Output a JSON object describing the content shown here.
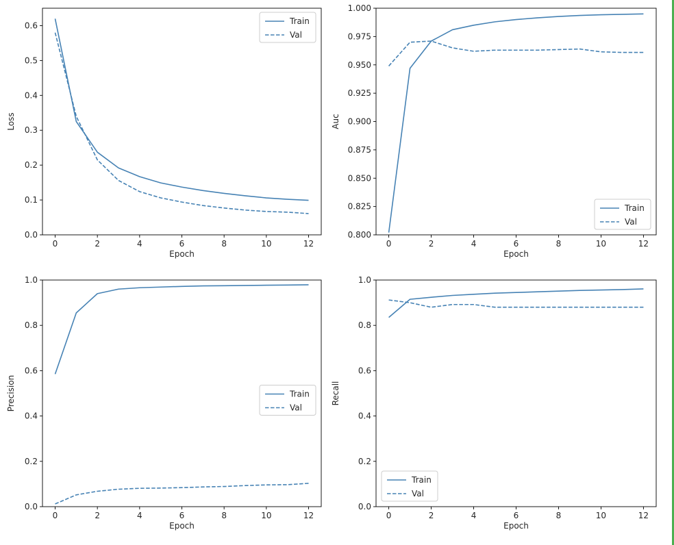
{
  "figure": {
    "colors": {
      "line": "#4682b4",
      "axis": "#000000",
      "text": "#262626",
      "legend_edge": "#cccccc"
    }
  },
  "chart_data": [
    {
      "type": "line",
      "id": "loss",
      "title": "",
      "xlabel": "Epoch",
      "ylabel": "Loss",
      "xlim": [
        -0.6,
        12.6
      ],
      "ylim": [
        0,
        0.65
      ],
      "xticks": [
        0,
        2,
        4,
        6,
        8,
        10,
        12
      ],
      "xtick_labels": [
        "0",
        "2",
        "4",
        "6",
        "8",
        "10",
        "12"
      ],
      "yticks": [
        0,
        0.1,
        0.2,
        0.3,
        0.4,
        0.5,
        0.6
      ],
      "ytick_labels": [
        "0.0",
        "0.1",
        "0.2",
        "0.3",
        "0.4",
        "0.5",
        "0.6"
      ],
      "legend": {
        "placement": "upper right",
        "entries": [
          "Train",
          "Val"
        ]
      },
      "x": [
        0,
        1,
        2,
        3,
        4,
        5,
        6,
        7,
        8,
        9,
        10,
        11,
        12
      ],
      "series": [
        {
          "name": "Train",
          "style": "solid",
          "values": [
            0.62,
            0.325,
            0.237,
            0.192,
            0.167,
            0.149,
            0.137,
            0.127,
            0.119,
            0.112,
            0.106,
            0.102,
            0.099
          ]
        },
        {
          "name": "Val",
          "style": "dashed",
          "values": [
            0.58,
            0.34,
            0.215,
            0.156,
            0.124,
            0.106,
            0.094,
            0.084,
            0.077,
            0.071,
            0.067,
            0.065,
            0.061
          ]
        }
      ]
    },
    {
      "type": "line",
      "id": "auc",
      "title": "",
      "xlabel": "Epoch",
      "ylabel": "Auc",
      "xlim": [
        -0.6,
        12.6
      ],
      "ylim": [
        0.8,
        1.0
      ],
      "xticks": [
        0,
        2,
        4,
        6,
        8,
        10,
        12
      ],
      "xtick_labels": [
        "0",
        "2",
        "4",
        "6",
        "8",
        "10",
        "12"
      ],
      "yticks": [
        0.8,
        0.825,
        0.85,
        0.875,
        0.9,
        0.925,
        0.95,
        0.975,
        1.0
      ],
      "ytick_labels": [
        "0.800",
        "0.825",
        "0.850",
        "0.875",
        "0.900",
        "0.925",
        "0.950",
        "0.975",
        "1.000"
      ],
      "legend": {
        "placement": "lower right",
        "entries": [
          "Train",
          "Val"
        ]
      },
      "x": [
        0,
        1,
        2,
        3,
        4,
        5,
        6,
        7,
        8,
        9,
        10,
        11,
        12
      ],
      "series": [
        {
          "name": "Train",
          "style": "solid",
          "values": [
            0.802,
            0.947,
            0.971,
            0.981,
            0.985,
            0.988,
            0.99,
            0.9915,
            0.9927,
            0.9936,
            0.9942,
            0.9946,
            0.995
          ]
        },
        {
          "name": "Val",
          "style": "dashed",
          "values": [
            0.949,
            0.97,
            0.971,
            0.965,
            0.962,
            0.963,
            0.963,
            0.963,
            0.9635,
            0.964,
            0.9615,
            0.961,
            0.961
          ]
        }
      ]
    },
    {
      "type": "line",
      "id": "precision",
      "title": "",
      "xlabel": "Epoch",
      "ylabel": "Precision",
      "xlim": [
        -0.6,
        12.6
      ],
      "ylim": [
        0,
        1.0
      ],
      "xticks": [
        0,
        2,
        4,
        6,
        8,
        10,
        12
      ],
      "xtick_labels": [
        "0",
        "2",
        "4",
        "6",
        "8",
        "10",
        "12"
      ],
      "yticks": [
        0,
        0.2,
        0.4,
        0.6,
        0.8,
        1.0
      ],
      "ytick_labels": [
        "0.0",
        "0.2",
        "0.4",
        "0.6",
        "0.8",
        "1.0"
      ],
      "legend": {
        "placement": "center right",
        "entries": [
          "Train",
          "Val"
        ]
      },
      "x": [
        0,
        1,
        2,
        3,
        4,
        5,
        6,
        7,
        8,
        9,
        10,
        11,
        12
      ],
      "series": [
        {
          "name": "Train",
          "style": "solid",
          "values": [
            0.585,
            0.855,
            0.94,
            0.96,
            0.966,
            0.969,
            0.972,
            0.974,
            0.975,
            0.976,
            0.977,
            0.978,
            0.979
          ]
        },
        {
          "name": "Val",
          "style": "dashed",
          "values": [
            0.012,
            0.052,
            0.068,
            0.077,
            0.081,
            0.082,
            0.084,
            0.087,
            0.089,
            0.093,
            0.096,
            0.097,
            0.103
          ]
        }
      ]
    },
    {
      "type": "line",
      "id": "recall",
      "title": "",
      "xlabel": "Epoch",
      "ylabel": "Recall",
      "xlim": [
        -0.6,
        12.6
      ],
      "ylim": [
        0,
        1.0
      ],
      "xticks": [
        0,
        2,
        4,
        6,
        8,
        10,
        12
      ],
      "xtick_labels": [
        "0",
        "2",
        "4",
        "6",
        "8",
        "10",
        "12"
      ],
      "yticks": [
        0,
        0.2,
        0.4,
        0.6,
        0.8,
        1.0
      ],
      "ytick_labels": [
        "0.0",
        "0.2",
        "0.4",
        "0.6",
        "0.8",
        "1.0"
      ],
      "legend": {
        "placement": "lower left",
        "entries": [
          "Train",
          "Val"
        ]
      },
      "x": [
        0,
        1,
        2,
        3,
        4,
        5,
        6,
        7,
        8,
        9,
        10,
        11,
        12
      ],
      "series": [
        {
          "name": "Train",
          "style": "solid",
          "values": [
            0.835,
            0.915,
            0.924,
            0.932,
            0.937,
            0.942,
            0.945,
            0.948,
            0.951,
            0.954,
            0.956,
            0.958,
            0.961
          ]
        },
        {
          "name": "Val",
          "style": "dashed",
          "values": [
            0.912,
            0.9,
            0.88,
            0.892,
            0.892,
            0.88,
            0.88,
            0.88,
            0.88,
            0.88,
            0.88,
            0.88,
            0.88
          ]
        }
      ]
    }
  ]
}
